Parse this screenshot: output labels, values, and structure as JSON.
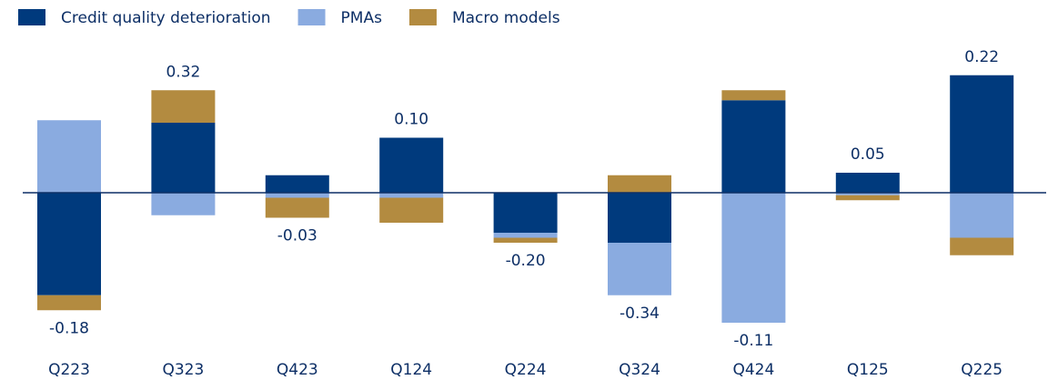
{
  "chart_data": {
    "type": "stacked_bar",
    "categories": [
      "Q223",
      "Q323",
      "Q423",
      "Q124",
      "Q224",
      "Q324",
      "Q424",
      "Q125",
      "Q225"
    ],
    "series": [
      {
        "name": "Credit quality deterioration",
        "color": "#003a7d",
        "values": [
          -0.41,
          0.28,
          0.07,
          0.22,
          -0.16,
          -0.2,
          0.37,
          0.08,
          0.47
        ]
      },
      {
        "name": "PMAs",
        "color": "#8aabe0",
        "values": [
          0.29,
          -0.09,
          -0.02,
          -0.02,
          -0.02,
          -0.21,
          -0.52,
          -0.01,
          -0.18
        ]
      },
      {
        "name": "Macro models",
        "color": "#b38b40",
        "values": [
          -0.06,
          0.13,
          -0.08,
          -0.1,
          -0.02,
          0.07,
          0.04,
          -0.02,
          -0.07
        ]
      }
    ],
    "totals": {
      "values": [
        -0.18,
        0.32,
        -0.03,
        0.1,
        -0.2,
        -0.34,
        -0.11,
        0.05,
        0.22
      ],
      "value_labels": [
        "-0.18",
        "0.32",
        "-0.03",
        "0.10",
        "-0.20",
        "-0.34",
        "-0.11",
        "0.05",
        "0.22"
      ]
    }
  }
}
